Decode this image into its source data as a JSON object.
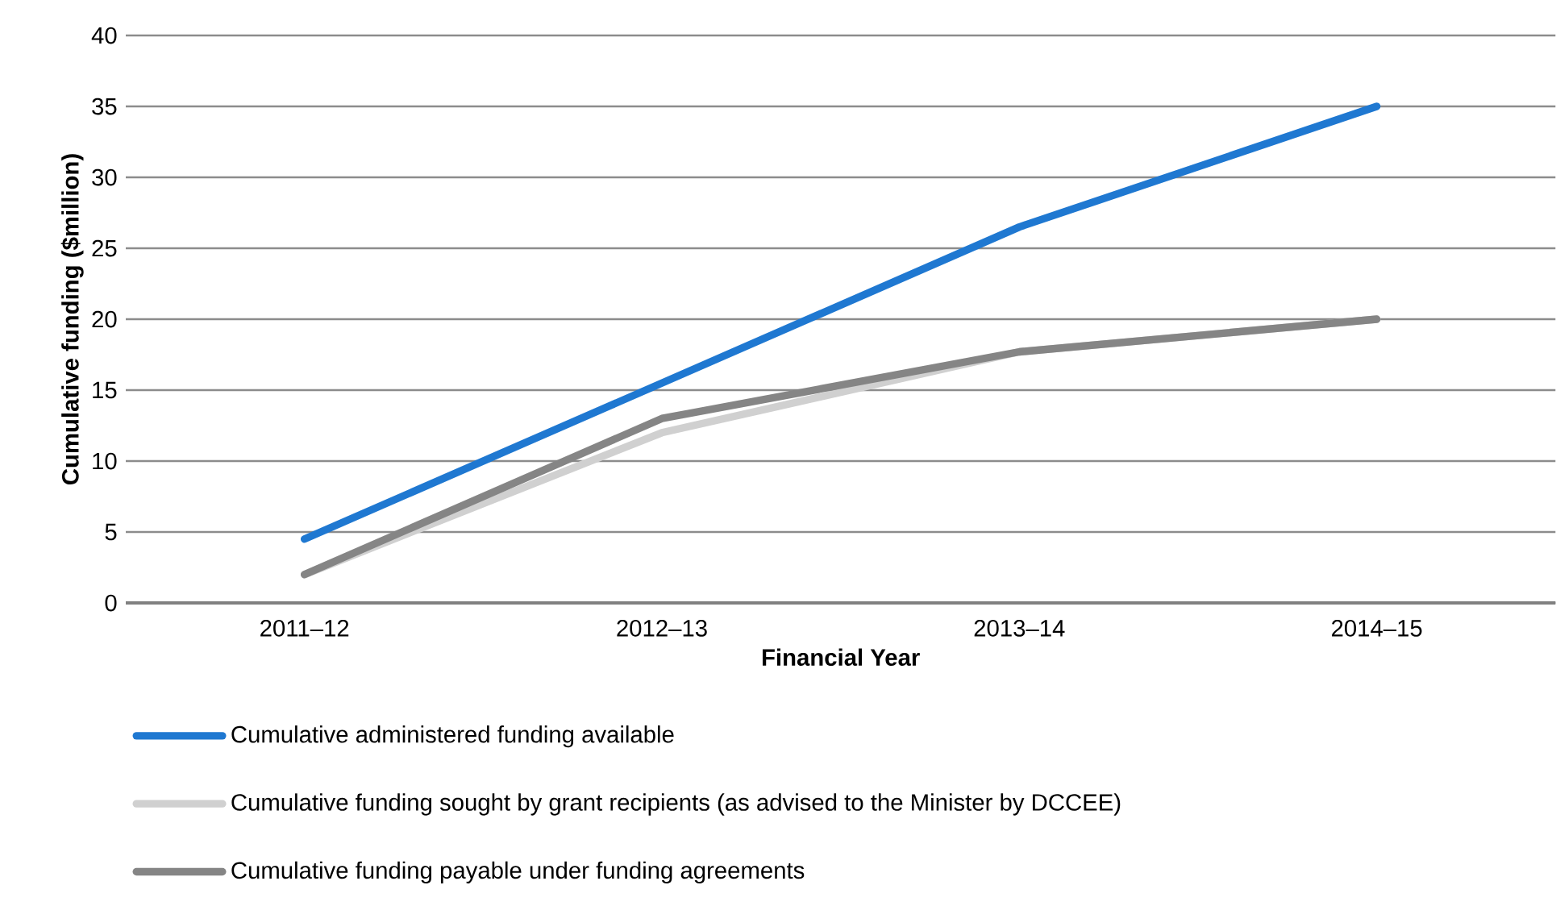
{
  "chart_data": {
    "type": "line",
    "xlabel": "Financial Year",
    "ylabel": "Cumulative funding ($million)",
    "categories": [
      "2011–12",
      "2012–13",
      "2013–14",
      "2014–15"
    ],
    "series": [
      {
        "name": "Cumulative administered funding available",
        "color": "#1f78d1",
        "values": [
          4.5,
          15.5,
          26.5,
          35
        ]
      },
      {
        "name": "Cumulative funding sought by grant recipients (as advised to the Minister by DCCEE)",
        "color": "#d0d0d0",
        "values": [
          2,
          12,
          17.7,
          20
        ]
      },
      {
        "name": "Cumulative funding payable under funding agreements",
        "color": "#858585",
        "values": [
          2,
          13,
          17.7,
          20
        ]
      }
    ],
    "ylim": [
      0,
      40
    ],
    "yticks": [
      0,
      5,
      10,
      15,
      20,
      25,
      30,
      35,
      40
    ],
    "grid": "y",
    "legend": "bottom",
    "marker": "none",
    "line_style": "solid"
  }
}
